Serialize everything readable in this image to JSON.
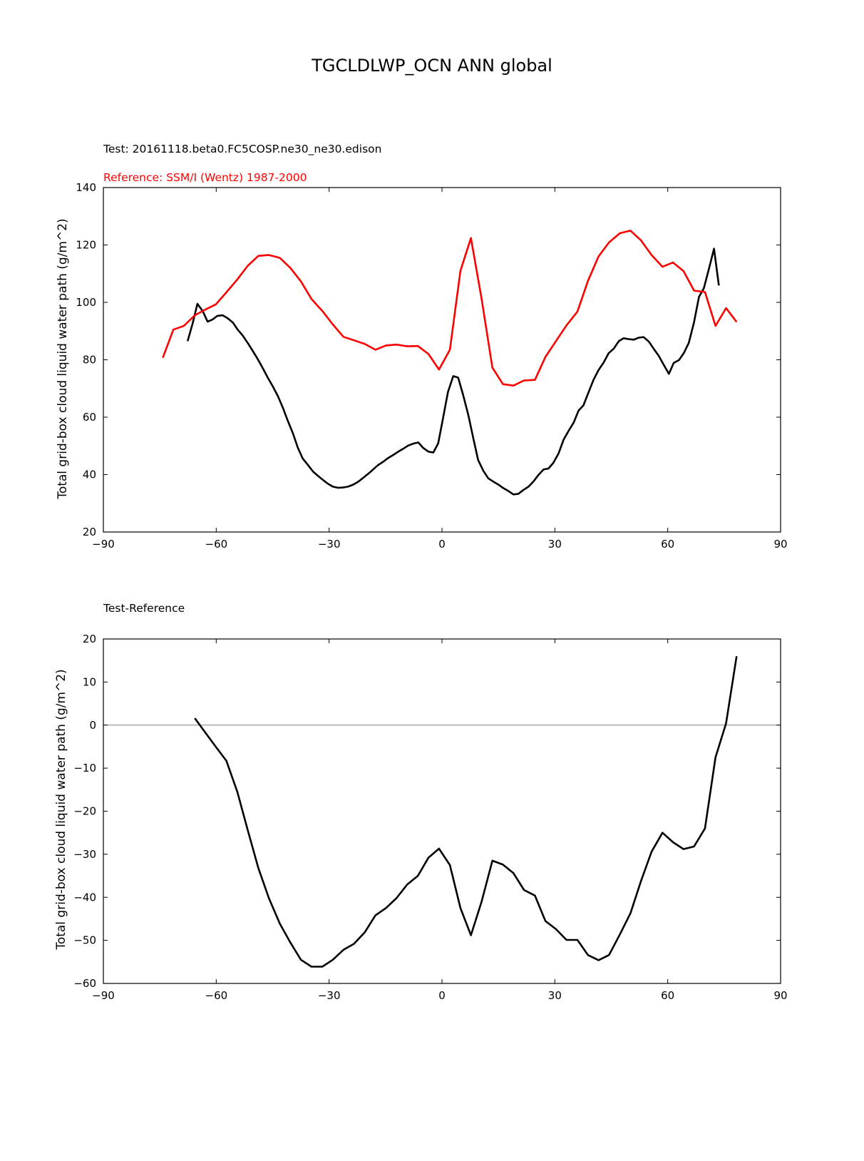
{
  "title": "TGCLDLWP_OCN ANN global",
  "colors": {
    "test": "#000000",
    "reference": "#ff0000",
    "zero_line": "#808080"
  },
  "chart_data": [
    {
      "type": "line",
      "test_label": "Test: 20161118.beta0.FC5COSP.ne30_ne30.edison",
      "reference_label": "Reference: SSM/I (Wentz) 1987-2000",
      "ylabel": "Total grid-box cloud liquid water path (g/m^2)",
      "xlim": [
        -90,
        90
      ],
      "ylim": [
        20,
        140
      ],
      "xticks": [
        -90,
        -60,
        -30,
        0,
        30,
        60,
        90
      ],
      "xtick_labels": [
        "−90",
        "−60",
        "−30",
        "0",
        "30",
        "60",
        "90"
      ],
      "yticks": [
        20,
        40,
        60,
        80,
        100,
        120,
        140
      ],
      "ytick_labels": [
        "20",
        "40",
        "60",
        "80",
        "100",
        "120",
        "140"
      ],
      "series": [
        {
          "key": "test",
          "color": "#000000",
          "points": [
            [
              -67.6,
              86.5
            ],
            [
              -66.2,
              93
            ],
            [
              -65.0,
              99.5
            ],
            [
              -63.6,
              97
            ],
            [
              -62.3,
              93.3
            ],
            [
              -61.0,
              94
            ],
            [
              -59.7,
              95.3
            ],
            [
              -58.3,
              95.5
            ],
            [
              -57.0,
              94.5
            ],
            [
              -55.6,
              93.0
            ],
            [
              -54.3,
              90.5
            ],
            [
              -53.0,
              88.5
            ],
            [
              -51.6,
              85.8
            ],
            [
              -50.3,
              83.1
            ],
            [
              -49.0,
              80.3
            ],
            [
              -47.6,
              77
            ],
            [
              -46.3,
              73.8
            ],
            [
              -45.0,
              70.8
            ],
            [
              -43.6,
              67.3
            ],
            [
              -42.3,
              63.3
            ],
            [
              -41.0,
              58.8
            ],
            [
              -39.6,
              54.3
            ],
            [
              -38.3,
              49.3
            ],
            [
              -37.0,
              45.6
            ],
            [
              -35.6,
              43.3
            ],
            [
              -34.3,
              41.1
            ],
            [
              -33.0,
              39.6
            ],
            [
              -31.6,
              38.1
            ],
            [
              -30.3,
              36.8
            ],
            [
              -29.0,
              35.8
            ],
            [
              -27.6,
              35.4
            ],
            [
              -26.3,
              35.5
            ],
            [
              -25.0,
              35.8
            ],
            [
              -23.6,
              36.5
            ],
            [
              -22.3,
              37.5
            ],
            [
              -21.0,
              38.8
            ],
            [
              -19.6,
              40.3
            ],
            [
              -18.3,
              41.8
            ],
            [
              -17.0,
              43.3
            ],
            [
              -15.6,
              44.5
            ],
            [
              -14.3,
              45.8
            ],
            [
              -13.0,
              46.8
            ],
            [
              -11.6,
              48.0
            ],
            [
              -10.3,
              49.0
            ],
            [
              -9.0,
              50.1
            ],
            [
              -7.6,
              50.8
            ],
            [
              -6.3,
              51.2
            ],
            [
              -5.0,
              49.3
            ],
            [
              -3.6,
              48.0
            ],
            [
              -2.3,
              47.7
            ],
            [
              -1.0,
              50.9
            ],
            [
              0.3,
              59.8
            ],
            [
              1.6,
              68.8
            ],
            [
              3.0,
              74.3
            ],
            [
              4.3,
              73.8
            ],
            [
              5.6,
              67.8
            ],
            [
              7.0,
              60.8
            ],
            [
              8.3,
              52.8
            ],
            [
              9.6,
              45.1
            ],
            [
              11.0,
              41.3
            ],
            [
              12.3,
              38.7
            ],
            [
              13.6,
              37.6
            ],
            [
              15.0,
              36.5
            ],
            [
              16.3,
              35.3
            ],
            [
              17.6,
              34.3
            ],
            [
              19.0,
              33.1
            ],
            [
              20.3,
              33.3
            ],
            [
              21.6,
              34.6
            ],
            [
              23.0,
              35.8
            ],
            [
              24.3,
              37.6
            ],
            [
              25.6,
              39.8
            ],
            [
              27.0,
              41.8
            ],
            [
              28.3,
              42.1
            ],
            [
              29.6,
              44.1
            ],
            [
              31.0,
              47.4
            ],
            [
              32.3,
              52.1
            ],
            [
              33.6,
              55.1
            ],
            [
              35.0,
              58.1
            ],
            [
              36.3,
              62.3
            ],
            [
              37.6,
              64.1
            ],
            [
              39.0,
              68.8
            ],
            [
              40.3,
              73.1
            ],
            [
              41.6,
              76.4
            ],
            [
              43.0,
              79.1
            ],
            [
              44.3,
              82.3
            ],
            [
              45.6,
              83.8
            ],
            [
              47.0,
              86.5
            ],
            [
              48.3,
              87.5
            ],
            [
              49.6,
              87.2
            ],
            [
              51.0,
              87.0
            ],
            [
              52.3,
              87.7
            ],
            [
              53.6,
              87.9
            ],
            [
              55.0,
              86.3
            ],
            [
              56.3,
              83.8
            ],
            [
              57.6,
              81.4
            ],
            [
              59.0,
              78.1
            ],
            [
              60.3,
              75.1
            ],
            [
              61.6,
              78.9
            ],
            [
              63.0,
              79.9
            ],
            [
              64.3,
              82.4
            ],
            [
              65.6,
              85.9
            ],
            [
              67.0,
              93.1
            ],
            [
              68.3,
              101.9
            ],
            [
              69.6,
              104.9
            ],
            [
              71.0,
              111.9
            ],
            [
              72.3,
              118.7
            ],
            [
              73.6,
              105.9
            ]
          ]
        },
        {
          "key": "reference",
          "color": "#ff0000",
          "points": [
            [
              -74.2,
              80.7
            ],
            [
              -71.4,
              90.5
            ],
            [
              -68.6,
              91.8
            ],
            [
              -65.7,
              95.5
            ],
            [
              -62.9,
              97.5
            ],
            [
              -60.1,
              99.3
            ],
            [
              -57.3,
              103.5
            ],
            [
              -54.4,
              108.0
            ],
            [
              -51.6,
              112.8
            ],
            [
              -48.8,
              116.2
            ],
            [
              -46.0,
              116.5
            ],
            [
              -43.1,
              115.5
            ],
            [
              -40.3,
              112.0
            ],
            [
              -37.5,
              107.3
            ],
            [
              -34.7,
              101.2
            ],
            [
              -31.8,
              97.0
            ],
            [
              -29.0,
              92.3
            ],
            [
              -26.2,
              88.0
            ],
            [
              -23.4,
              86.8
            ],
            [
              -20.5,
              85.5
            ],
            [
              -17.7,
              83.5
            ],
            [
              -14.9,
              85.0
            ],
            [
              -12.1,
              85.3
            ],
            [
              -9.2,
              84.7
            ],
            [
              -6.4,
              84.8
            ],
            [
              -3.6,
              82.0
            ],
            [
              -0.8,
              76.6
            ],
            [
              2.1,
              83.5
            ],
            [
              4.9,
              111.0
            ],
            [
              7.7,
              122.4
            ],
            [
              10.5,
              101.5
            ],
            [
              13.4,
              77.3
            ],
            [
              16.2,
              71.5
            ],
            [
              19.0,
              71.0
            ],
            [
              21.8,
              72.8
            ],
            [
              24.7,
              73.0
            ],
            [
              27.5,
              81.0
            ],
            [
              30.3,
              86.5
            ],
            [
              33.1,
              92.0
            ],
            [
              36.0,
              96.8
            ],
            [
              38.8,
              107.5
            ],
            [
              41.6,
              116.0
            ],
            [
              44.4,
              120.9
            ],
            [
              47.3,
              124.1
            ],
            [
              50.1,
              125.0
            ],
            [
              52.9,
              121.6
            ],
            [
              55.7,
              116.5
            ],
            [
              58.6,
              112.4
            ],
            [
              61.4,
              113.9
            ],
            [
              64.2,
              110.9
            ],
            [
              67.0,
              104.1
            ],
            [
              69.9,
              103.6
            ],
            [
              72.7,
              91.8
            ],
            [
              75.5,
              98.0
            ],
            [
              78.3,
              93.2
            ]
          ]
        }
      ]
    },
    {
      "type": "line",
      "label": "Test-Reference",
      "ylabel": "Total grid-box cloud liquid water path (g/m^2)",
      "xlim": [
        -90,
        90
      ],
      "ylim": [
        -60,
        20
      ],
      "xticks": [
        -90,
        -60,
        -30,
        0,
        30,
        60,
        90
      ],
      "xtick_labels": [
        "−90",
        "−60",
        "−30",
        "0",
        "30",
        "60",
        "90"
      ],
      "yticks": [
        -60,
        -50,
        -40,
        -30,
        -20,
        -10,
        0,
        10,
        20
      ],
      "ytick_labels": [
        "−60",
        "−50",
        "−40",
        "−30",
        "−20",
        "−10",
        "0",
        "10",
        "20"
      ],
      "zero_line": 0,
      "series": [
        {
          "key": "diff",
          "color": "#000000",
          "points": [
            [
              -65.7,
              1.6
            ],
            [
              -63.6,
              -0.9
            ],
            [
              -60.4,
              -4.7
            ],
            [
              -57.3,
              -8.3
            ],
            [
              -54.4,
              -15.5
            ],
            [
              -51.6,
              -24.5
            ],
            [
              -48.8,
              -33.2
            ],
            [
              -46.0,
              -40.2
            ],
            [
              -43.1,
              -46.1
            ],
            [
              -40.3,
              -50.5
            ],
            [
              -37.5,
              -54.5
            ],
            [
              -34.7,
              -56.1
            ],
            [
              -31.8,
              -56.1
            ],
            [
              -29.0,
              -54.5
            ],
            [
              -26.2,
              -52.2
            ],
            [
              -23.4,
              -50.8
            ],
            [
              -20.5,
              -48.1
            ],
            [
              -17.7,
              -44.2
            ],
            [
              -14.9,
              -42.5
            ],
            [
              -12.1,
              -40.2
            ],
            [
              -9.2,
              -37.0
            ],
            [
              -6.4,
              -35.0
            ],
            [
              -3.6,
              -30.8
            ],
            [
              -0.8,
              -28.7
            ],
            [
              2.1,
              -32.5
            ],
            [
              4.9,
              -42.5
            ],
            [
              7.7,
              -48.8
            ],
            [
              10.5,
              -41.1
            ],
            [
              13.4,
              -31.5
            ],
            [
              16.2,
              -32.4
            ],
            [
              19.0,
              -34.4
            ],
            [
              21.8,
              -38.3
            ],
            [
              24.7,
              -39.6
            ],
            [
              27.5,
              -45.5
            ],
            [
              30.3,
              -47.4
            ],
            [
              33.1,
              -49.9
            ],
            [
              36.0,
              -49.9
            ],
            [
              38.8,
              -53.4
            ],
            [
              41.6,
              -54.6
            ],
            [
              44.4,
              -53.4
            ],
            [
              47.3,
              -48.6
            ],
            [
              50.1,
              -43.7
            ],
            [
              52.9,
              -36.2
            ],
            [
              55.7,
              -29.4
            ],
            [
              58.6,
              -25.0
            ],
            [
              61.4,
              -27.2
            ],
            [
              64.2,
              -28.8
            ],
            [
              67.0,
              -28.2
            ],
            [
              69.9,
              -24.0
            ],
            [
              72.7,
              -7.5
            ],
            [
              75.5,
              0.4
            ],
            [
              78.3,
              16.0
            ]
          ]
        }
      ]
    }
  ]
}
